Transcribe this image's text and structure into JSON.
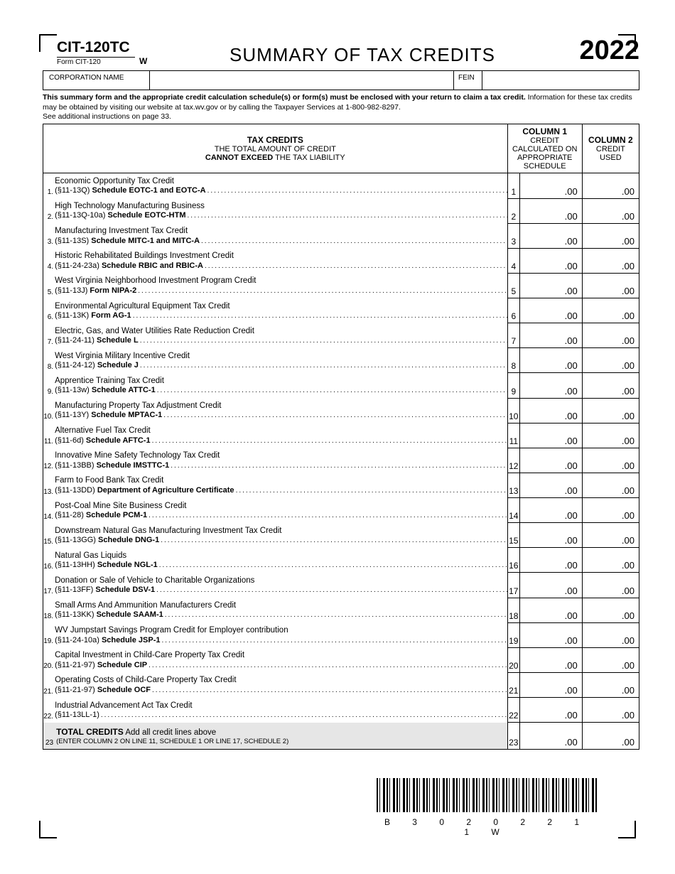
{
  "header": {
    "form_id": "CIT-120TC",
    "form_sub": "Form CIT-120",
    "rev_code": "W",
    "title": "SUMMARY OF TAX CREDITS",
    "year": "2022"
  },
  "name_block": {
    "corp_label": "CORPORATION NAME",
    "fein_label": "FEIN"
  },
  "instruction": {
    "bold": "This summary form and the appropriate credit calculation schedule(s) or form(s) must be enclosed with your return to claim a tax credit.",
    "rest": " Information for these tax credits may be obtained by visiting our website at tax.wv.gov or by calling the Taxpayer Services at 1-800-982-8297.",
    "line3": "See additional instructions on page 33."
  },
  "columns": {
    "c0_title": "TAX CREDITS",
    "c0_l2": "THE TOTAL AMOUNT OF CREDIT",
    "c0_l3a": "CANNOT EXCEED",
    "c0_l3b": " THE TAX LIABILITY",
    "c1_title": "COLUMN 1",
    "c1_l2": "CREDIT CALCULATED ON",
    "c1_l3": "APPROPRIATE SCHEDULE",
    "c2_title": "COLUMN 2",
    "c2_l2": "CREDIT USED"
  },
  "rows": [
    {
      "n": "1",
      "title": "Economic Opportunity Tax Credit",
      "sub_pre": "(§11-13Q) ",
      "sub_b": "Schedule EOTC-1 and EOTC-A",
      "v1": ".00",
      "v2": ".00",
      "dots": true
    },
    {
      "n": "2",
      "title": "High Technology Manufacturing Business",
      "sub_pre": "(§11-13Q-10a) ",
      "sub_b": "Schedule EOTC-HTM",
      "v1": ".00",
      "v2": ".00",
      "dots": true
    },
    {
      "n": "3",
      "title": "Manufacturing Investment Tax Credit",
      "sub_pre": "(§11-13S) ",
      "sub_b": "Schedule MITC-1 and MITC-A",
      "v1": ".00",
      "v2": ".00",
      "dots": true
    },
    {
      "n": "4",
      "title": "Historic Rehabilitated Buildings Investment Credit",
      "sub_pre": "(§11-24-23a) ",
      "sub_b": "Schedule RBIC and RBIC-A",
      "v1": ".00",
      "v2": ".00",
      "dots": true
    },
    {
      "n": "5",
      "title": "West Virginia Neighborhood Investment Program Credit",
      "sub_pre": "(§11-13J) ",
      "sub_b": "Form NIPA-2",
      "v1": ".00",
      "v2": ".00",
      "dots": true
    },
    {
      "n": "6",
      "title": "Environmental Agricultural Equipment Tax Credit",
      "sub_pre": "(§11-13K) ",
      "sub_b": "Form AG-1",
      "v1": ".00",
      "v2": ".00",
      "dots": true
    },
    {
      "n": "7",
      "title": "Electric, Gas, and Water Utilities Rate Reduction Credit",
      "sub_pre": "(§11-24-11) ",
      "sub_b": "Schedule L",
      "v1": ".00",
      "v2": ".00",
      "dots": true
    },
    {
      "n": "8",
      "title": "West Virginia Military Incentive Credit",
      "sub_pre": "(§11-24-12) ",
      "sub_b": "Schedule J",
      "v1": ".00",
      "v2": ".00",
      "dots": true
    },
    {
      "n": "9",
      "title": "Apprentice Training Tax Credit",
      "sub_pre": "(§11-13w) ",
      "sub_b": "Schedule ATTC-1",
      "v1": ".00",
      "v2": ".00",
      "dots": true
    },
    {
      "n": "10",
      "title": "Manufacturing Property Tax Adjustment Credit",
      "sub_pre": "(§11-13Y) ",
      "sub_b": "Schedule MPTAC-1",
      "v1": ".00",
      "v2": ".00",
      "dots": true
    },
    {
      "n": "11",
      "title": "Alternative Fuel Tax Credit",
      "sub_pre": "(§11-6d) ",
      "sub_b": "Schedule AFTC-1",
      "v1": ".00",
      "v2": ".00",
      "dots": true
    },
    {
      "n": "12",
      "title": "Innovative Mine Safety Technology Tax Credit",
      "sub_pre": "(§11-13BB) ",
      "sub_b": "Schedule IMSTTC-1",
      "v1": ".00",
      "v2": ".00",
      "dots": true
    },
    {
      "n": "13",
      "title": "Farm to Food Bank Tax Credit",
      "sub_pre": "(§11-13DD) ",
      "sub_b": "Department of Agriculture Certificate",
      "v1": ".00",
      "v2": ".00",
      "dots": true
    },
    {
      "n": "14",
      "title": "Post-Coal Mine Site Business Credit",
      "sub_pre": "(§11-28) ",
      "sub_b": "Schedule PCM-1",
      "v1": ".00",
      "v2": ".00",
      "dots": true
    },
    {
      "n": "15",
      "title": "Downstream Natural Gas Manufacturing Investment Tax Credit",
      "sub_pre": "(§11-13GG) ",
      "sub_b": "Schedule DNG-1",
      "v1": ".00",
      "v2": ".00",
      "dots": true
    },
    {
      "n": "16",
      "title": "Natural Gas Liquids",
      "sub_pre": "(§11-13HH) ",
      "sub_b": "Schedule NGL-1",
      "v1": ".00",
      "v2": ".00",
      "dots": true
    },
    {
      "n": "17",
      "title": "Donation or Sale of Vehicle to Charitable Organizations",
      "sub_pre": "(§11-13FF) ",
      "sub_b": "Schedule DSV-1",
      "v1": ".00",
      "v2": ".00",
      "dots": true
    },
    {
      "n": "18",
      "title": "Small Arms And Ammunition Manufacturers Credit",
      "sub_pre": "(§11-13KK) ",
      "sub_b": "Schedule SAAM-1",
      "v1": ".00",
      "v2": ".00",
      "dots": true
    },
    {
      "n": "19",
      "title": "WV Jumpstart Savings Program Credit for Employer contribution",
      "sub_pre": "(§11-24-10a) ",
      "sub_b": "Schedule JSP-1",
      "v1": ".00",
      "v2": ".00",
      "dots": true
    },
    {
      "n": "20",
      "title": "Capital Investment in Child-Care Property Tax Credit",
      "sub_pre": "(§11-21-97) ",
      "sub_b": "Schedule CIP",
      "v1": ".00",
      "v2": ".00",
      "dots": true
    },
    {
      "n": "21",
      "title": "Operating Costs of Child-Care Property Tax Credit",
      "sub_pre": "(§11-21-97) ",
      "sub_b": "Schedule OCF",
      "v1": ".00",
      "v2": ".00",
      "dots": true
    },
    {
      "n": "22",
      "title": "Industrial Advancement Act Tax Credit",
      "sub_pre": "(§11-13LL-1) ",
      "sub_b": "",
      "v1": ".00",
      "v2": ".00",
      "dots": true
    }
  ],
  "total_row": {
    "n": "23",
    "bold": "TOTAL CREDITS",
    "rest": " Add all credit lines above",
    "sub": "(ENTER COLUMN 2 ON LINE 11, SCHEDULE 1 OR LINE 17, SCHEDULE 2)",
    "v1": ".00",
    "v2": ".00"
  },
  "barcode_text": "B 3 0 2 0 2 2 1 1 W"
}
